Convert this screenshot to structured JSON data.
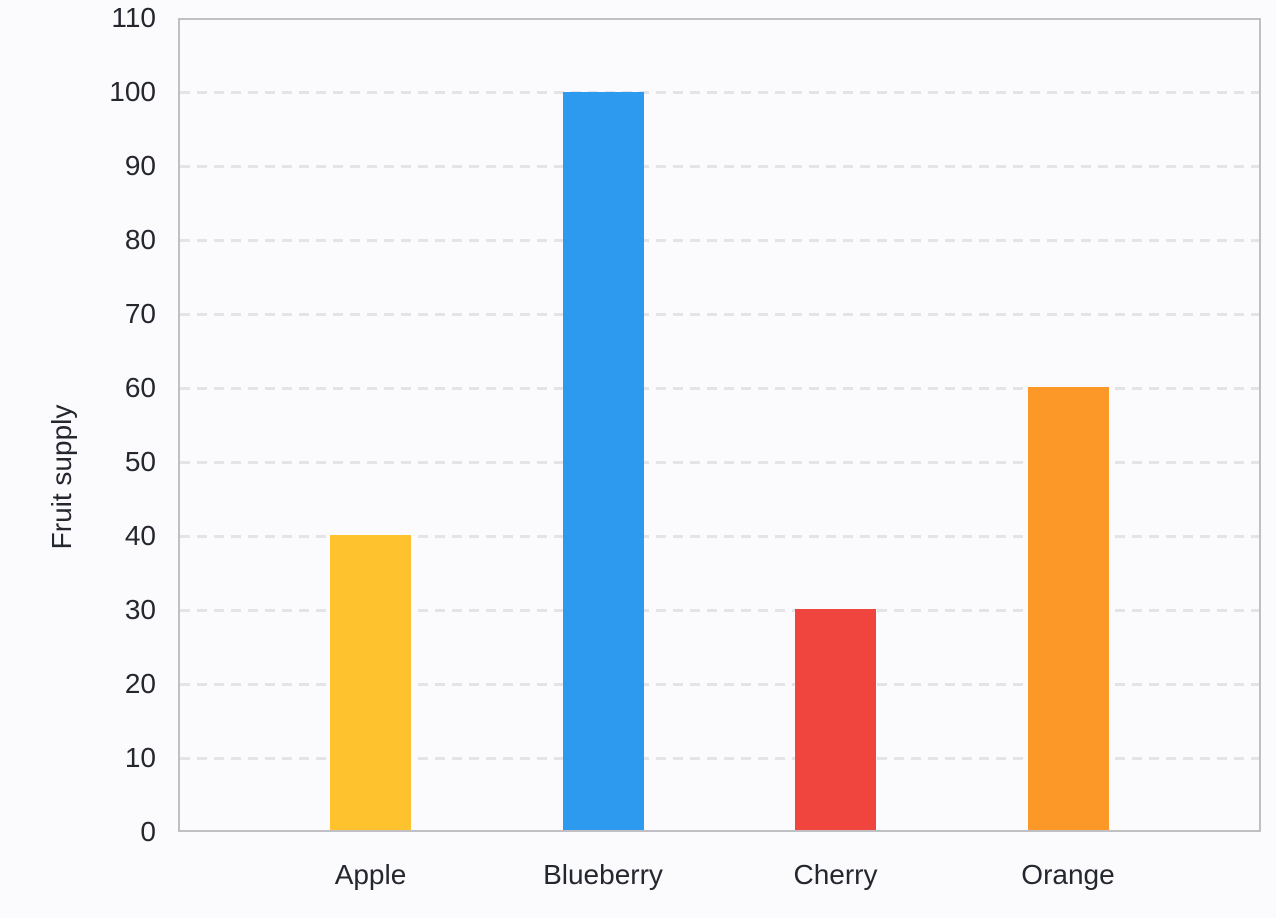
{
  "page": {
    "background_color": "#fbfbfe"
  },
  "chart_data": {
    "type": "bar",
    "title": "",
    "xlabel": "",
    "ylabel": "Fruit supply",
    "categories": [
      "Apple",
      "Blueberry",
      "Cherry",
      "Orange"
    ],
    "values": [
      40,
      100,
      30,
      60
    ],
    "bar_colors": [
      "#fdc22d",
      "#2d9af0",
      "#f0443e",
      "#fb9828"
    ],
    "ylim": [
      0,
      110
    ],
    "ytick_step": 10,
    "yticks": [
      0,
      10,
      20,
      30,
      40,
      50,
      60,
      70,
      80,
      90,
      100,
      110
    ],
    "grid": "horizontal-dashed",
    "legend": "none",
    "colors": {
      "grid": "#e4e4e8",
      "axis_frame": "#bfbfc4",
      "text": "#24272e",
      "background": "#fbfbfe"
    }
  }
}
